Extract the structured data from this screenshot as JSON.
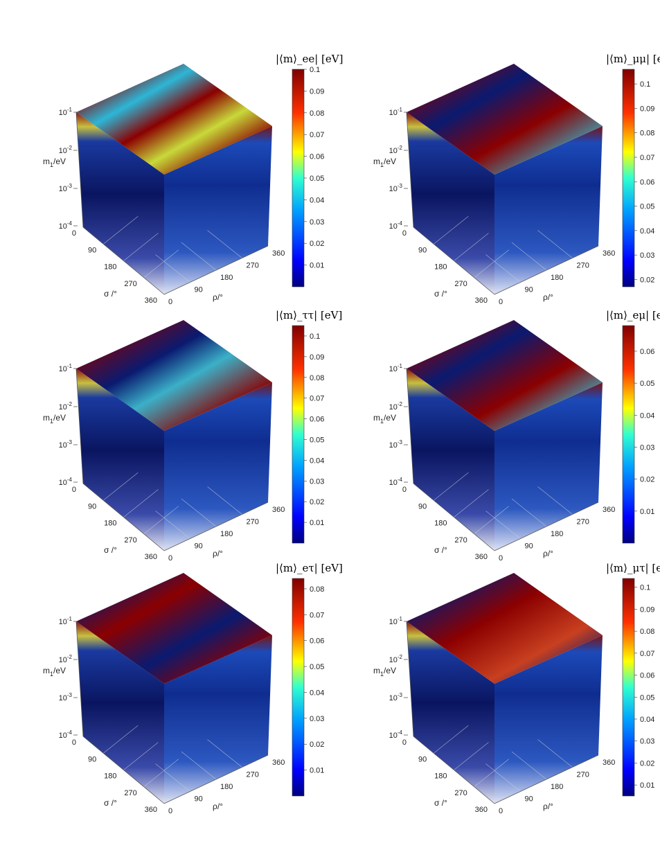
{
  "figure": {
    "panels": [
      {
        "id": "ee",
        "title": "|⟨m⟩_ee| [eV]",
        "colorbar": {
          "ticks": [
            "0.1",
            "0.09",
            "0.08",
            "0.07",
            "0.06",
            "0.05",
            "0.04",
            "0.03",
            "0.02",
            "0.01"
          ],
          "min": 0.0,
          "max": 0.1
        }
      },
      {
        "id": "mumu",
        "title": "|⟨m⟩_μμ| [eV]",
        "colorbar": {
          "ticks": [
            "0.1",
            "0.09",
            "0.08",
            "0.07",
            "0.06",
            "0.05",
            "0.04",
            "0.03",
            "0.02"
          ],
          "min": 0.017,
          "max": 0.106
        }
      },
      {
        "id": "tautau",
        "title": "|⟨m⟩_ττ| [eV]",
        "colorbar": {
          "ticks": [
            "0.1",
            "0.09",
            "0.08",
            "0.07",
            "0.06",
            "0.05",
            "0.04",
            "0.03",
            "0.02",
            "0.01"
          ],
          "min": 0.0,
          "max": 0.105
        }
      },
      {
        "id": "emu",
        "title": "|⟨m⟩_eμ| [eV]",
        "colorbar": {
          "ticks": [
            "0.06",
            "0.05",
            "0.04",
            "0.03",
            "0.02",
            "0.01"
          ],
          "min": 0.0,
          "max": 0.068
        }
      },
      {
        "id": "etau",
        "title": "|⟨m⟩_eτ| [eV]",
        "colorbar": {
          "ticks": [
            "0.08",
            "0.07",
            "0.06",
            "0.05",
            "0.04",
            "0.03",
            "0.02",
            "0.01"
          ],
          "min": 0.0,
          "max": 0.084
        }
      },
      {
        "id": "mutau",
        "title": "|⟨m⟩_μτ| [eV]",
        "colorbar": {
          "ticks": [
            "0.1",
            "0.09",
            "0.08",
            "0.07",
            "0.06",
            "0.05",
            "0.04",
            "0.03",
            "0.02",
            "0.01"
          ],
          "min": 0.005,
          "max": 0.104
        }
      }
    ]
  },
  "chart_data": [
    {
      "type": "heatmap",
      "title": "|⟨m⟩_ee| [eV]",
      "xlabel": "σ /°",
      "ylabel": "ρ/°",
      "zlabel": "m1/eV",
      "x_ticks": [
        "0",
        "90",
        "180",
        "270",
        "360"
      ],
      "y_ticks": [
        "0",
        "90",
        "180",
        "270",
        "360"
      ],
      "z_ticks": [
        "10-4",
        "10-3",
        "10-2",
        "10-1"
      ],
      "zscale": "log",
      "colorbar_range": [
        0.0,
        0.1
      ]
    },
    {
      "type": "heatmap",
      "title": "|⟨m⟩_μμ| [eV]",
      "xlabel": "σ /°",
      "ylabel": "ρ/°",
      "zlabel": "m1/eV",
      "x_ticks": [
        "0",
        "90",
        "180",
        "270",
        "360"
      ],
      "y_ticks": [
        "0",
        "90",
        "180",
        "270",
        "360"
      ],
      "z_ticks": [
        "10-4",
        "10-3",
        "10-2",
        "10-1"
      ],
      "zscale": "log",
      "colorbar_range": [
        0.017,
        0.106
      ]
    },
    {
      "type": "heatmap",
      "title": "|⟨m⟩_ττ| [eV]",
      "xlabel": "σ /°",
      "ylabel": "ρ/°",
      "zlabel": "m1/eV",
      "x_ticks": [
        "0",
        "90",
        "180",
        "270",
        "360"
      ],
      "y_ticks": [
        "0",
        "90",
        "180",
        "270",
        "360"
      ],
      "z_ticks": [
        "10-4",
        "10-3",
        "10-2",
        "10-1"
      ],
      "zscale": "log",
      "colorbar_range": [
        0.0,
        0.105
      ]
    },
    {
      "type": "heatmap",
      "title": "|⟨m⟩_eμ| [eV]",
      "xlabel": "σ /°",
      "ylabel": "ρ/°",
      "zlabel": "m1/eV",
      "x_ticks": [
        "0",
        "90",
        "180",
        "270",
        "360"
      ],
      "y_ticks": [
        "0",
        "90",
        "180",
        "270",
        "360"
      ],
      "z_ticks": [
        "10-4",
        "10-3",
        "10-2",
        "10-1"
      ],
      "zscale": "log",
      "colorbar_range": [
        0.0,
        0.068
      ]
    },
    {
      "type": "heatmap",
      "title": "|⟨m⟩_eτ| [eV]",
      "xlabel": "σ /°",
      "ylabel": "ρ/°",
      "zlabel": "m1/eV",
      "x_ticks": [
        "0",
        "90",
        "180",
        "270",
        "360"
      ],
      "y_ticks": [
        "0",
        "90",
        "180",
        "270",
        "360"
      ],
      "z_ticks": [
        "10-4",
        "10-3",
        "10-2",
        "10-1"
      ],
      "zscale": "log",
      "colorbar_range": [
        0.0,
        0.084
      ]
    },
    {
      "type": "heatmap",
      "title": "|⟨m⟩_μτ| [eV]",
      "xlabel": "σ /°",
      "ylabel": "ρ/°",
      "zlabel": "m1/eV",
      "x_ticks": [
        "0",
        "90",
        "180",
        "270",
        "360"
      ],
      "y_ticks": [
        "0",
        "90",
        "180",
        "270",
        "360"
      ],
      "z_ticks": [
        "10-4",
        "10-3",
        "10-2",
        "10-1"
      ],
      "zscale": "log",
      "colorbar_range": [
        0.005,
        0.104
      ]
    }
  ],
  "colors": {
    "jet_dark": "#00007f",
    "jet_blue": "#0000ff",
    "jet_cyan": "#00ffff",
    "jet_yellow": "#ffff00",
    "jet_red": "#ff0000",
    "jet_darkred": "#7f0000"
  }
}
